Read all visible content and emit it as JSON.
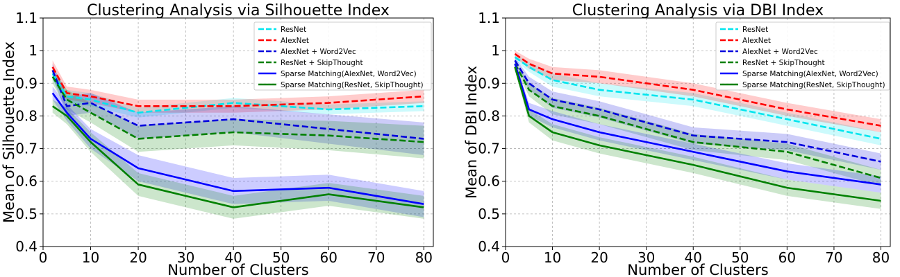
{
  "chart_data": [
    {
      "type": "line",
      "title": "Clustering Analysis via Silhouette Index",
      "xlabel": "Number of Clusters",
      "ylabel": "Mean of Silhouette Index",
      "xlim": [
        0,
        82
      ],
      "ylim": [
        0.4,
        1.1
      ],
      "xticks": [
        0,
        10,
        20,
        30,
        40,
        50,
        60,
        70,
        80
      ],
      "yticks": [
        0.4,
        0.5,
        0.6,
        0.7,
        0.8,
        0.9,
        1.0,
        1.1
      ],
      "x": [
        2,
        5,
        10,
        20,
        40,
        60,
        80
      ],
      "grid": true,
      "legend_position": "upper-right",
      "series": [
        {
          "name": "ResNet",
          "color": "#00e5ee",
          "style": "dashed",
          "values": [
            0.93,
            0.86,
            0.85,
            0.81,
            0.84,
            0.82,
            0.83
          ],
          "band": [
            0.02,
            0.02,
            0.02,
            0.015,
            0.015,
            0.015,
            0.015
          ]
        },
        {
          "name": "AlexNet",
          "color": "#ff0000",
          "style": "dashed",
          "values": [
            0.95,
            0.87,
            0.86,
            0.83,
            0.83,
            0.84,
            0.86
          ],
          "band": [
            0.02,
            0.02,
            0.02,
            0.02,
            0.02,
            0.02,
            0.02
          ]
        },
        {
          "name": "AlexNet + Word2Vec",
          "color": "#0000dd",
          "style": "dashed",
          "values": [
            0.94,
            0.83,
            0.84,
            0.77,
            0.79,
            0.76,
            0.73
          ],
          "band": [
            0.02,
            0.03,
            0.03,
            0.04,
            0.04,
            0.045,
            0.05
          ]
        },
        {
          "name": "ResNet + SkipThought",
          "color": "#008000",
          "style": "dashed",
          "values": [
            0.92,
            0.85,
            0.81,
            0.73,
            0.75,
            0.74,
            0.72
          ],
          "band": [
            0.02,
            0.03,
            0.03,
            0.04,
            0.04,
            0.045,
            0.05
          ]
        },
        {
          "name": "Sparse Matching(AlexNet, Word2Vec)",
          "color": "#0000ff",
          "style": "solid",
          "values": [
            0.87,
            0.81,
            0.73,
            0.64,
            0.57,
            0.58,
            0.53
          ],
          "band": [
            0.02,
            0.025,
            0.03,
            0.04,
            0.04,
            0.04,
            0.04
          ]
        },
        {
          "name": "Sparse Matching(ResNet, SkipThought)",
          "color": "#008000",
          "style": "solid",
          "values": [
            0.83,
            0.8,
            0.72,
            0.59,
            0.52,
            0.56,
            0.52
          ],
          "band": [
            0.02,
            0.025,
            0.03,
            0.035,
            0.035,
            0.035,
            0.035
          ]
        }
      ]
    },
    {
      "type": "line",
      "title": "Clustering Analysis via DBI Index",
      "xlabel": "Number of Clusters",
      "ylabel": "Mean of DBI Index",
      "xlim": [
        0,
        82
      ],
      "ylim": [
        0.4,
        1.1
      ],
      "xticks": [
        0,
        10,
        20,
        30,
        40,
        50,
        60,
        70,
        80
      ],
      "yticks": [
        0.4,
        0.5,
        0.6,
        0.7,
        0.8,
        0.9,
        1.0,
        1.1
      ],
      "x": [
        2,
        5,
        10,
        20,
        40,
        60,
        80
      ],
      "grid": true,
      "legend_position": "upper-right",
      "series": [
        {
          "name": "ResNet",
          "color": "#00e5ee",
          "style": "dashed",
          "values": [
            0.98,
            0.95,
            0.91,
            0.88,
            0.85,
            0.79,
            0.73
          ],
          "band": [
            0.01,
            0.015,
            0.02,
            0.02,
            0.02,
            0.02,
            0.02
          ]
        },
        {
          "name": "AlexNet",
          "color": "#ff0000",
          "style": "dashed",
          "values": [
            0.99,
            0.96,
            0.93,
            0.92,
            0.88,
            0.82,
            0.77
          ],
          "band": [
            0.01,
            0.015,
            0.02,
            0.02,
            0.02,
            0.02,
            0.02
          ]
        },
        {
          "name": "AlexNet + Word2Vec",
          "color": "#0000dd",
          "style": "dashed",
          "values": [
            0.97,
            0.9,
            0.85,
            0.82,
            0.74,
            0.72,
            0.66
          ],
          "band": [
            0.01,
            0.02,
            0.025,
            0.025,
            0.025,
            0.025,
            0.025
          ]
        },
        {
          "name": "ResNet + SkipThought",
          "color": "#008000",
          "style": "dashed",
          "values": [
            0.96,
            0.88,
            0.83,
            0.8,
            0.72,
            0.69,
            0.61
          ],
          "band": [
            0.01,
            0.02,
            0.025,
            0.025,
            0.025,
            0.025,
            0.025
          ]
        },
        {
          "name": "Sparse Matching(AlexNet, Word2Vec)",
          "color": "#0000ff",
          "style": "solid",
          "values": [
            0.96,
            0.82,
            0.79,
            0.75,
            0.69,
            0.63,
            0.59
          ],
          "band": [
            0.01,
            0.02,
            0.025,
            0.025,
            0.025,
            0.025,
            0.025
          ]
        },
        {
          "name": "Sparse Matching(ResNet, SkipThought)",
          "color": "#008000",
          "style": "solid",
          "values": [
            0.95,
            0.8,
            0.75,
            0.71,
            0.65,
            0.58,
            0.54
          ],
          "band": [
            0.01,
            0.02,
            0.025,
            0.025,
            0.025,
            0.025,
            0.025
          ]
        }
      ]
    }
  ]
}
